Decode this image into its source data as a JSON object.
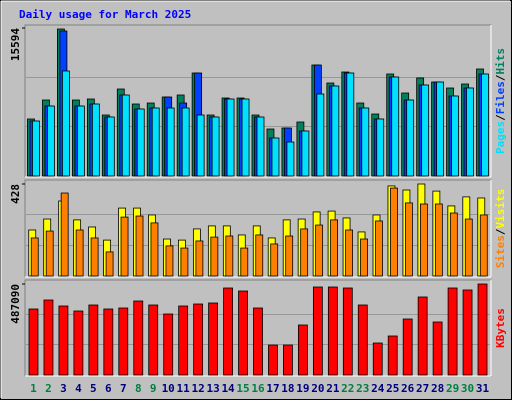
{
  "chart_data": {
    "type": "bar",
    "title": "Daily usage for March 2025",
    "legend_separator": "/",
    "categories": [
      "1",
      "2",
      "3",
      "4",
      "5",
      "6",
      "7",
      "8",
      "9",
      "10",
      "11",
      "12",
      "13",
      "14",
      "15",
      "16",
      "17",
      "18",
      "19",
      "20",
      "21",
      "22",
      "23",
      "24",
      "25",
      "26",
      "27",
      "28",
      "29",
      "30",
      "31"
    ],
    "category_colors": [
      "#008040",
      "#008040",
      "#000080",
      "#000080",
      "#000080",
      "#000080",
      "#000080",
      "#008040",
      "#008040",
      "#000080",
      "#000080",
      "#000080",
      "#000080",
      "#000080",
      "#008040",
      "#008040",
      "#000080",
      "#000080",
      "#000080",
      "#000080",
      "#000080",
      "#008040",
      "#008040",
      "#000080",
      "#000080",
      "#000080",
      "#000080",
      "#000080",
      "#008040",
      "#008040",
      "#000080"
    ],
    "panels": [
      {
        "ylim": [
          0,
          15594
        ],
        "yticks": [
          15594
        ],
        "series": [
          {
            "name": "Hits",
            "color": "#00805c",
            "values": [
              6006,
              8007,
              15488,
              8007,
              8113,
              6427,
              9166,
              7586,
              7691,
              8323,
              8534,
              10852,
              6427,
              8218,
              8218,
              6427,
              4952,
              5057,
              5689,
              11695,
              9798,
              10957,
              7691,
              6532,
              10747,
              8745,
              10325,
              9904,
              9272,
              9693,
              11274
            ]
          },
          {
            "name": "Files",
            "color": "#0040ff",
            "values": [
              5795,
              7375,
              15277,
              7375,
              7586,
              6216,
              8534,
              7059,
              7164,
              8323,
              7691,
              10852,
              6216,
              8113,
              8113,
              6216,
              4004,
              5057,
              4741,
              11695,
              9482,
              10852,
              7164,
              6006,
              10431,
              8007,
              9588,
              9904,
              8429,
              9272,
              10747
            ]
          },
          {
            "name": "Pages",
            "color": "#00e0ff",
            "values": [
              5795,
              7375,
              11063,
              7375,
              7586,
              6216,
              8534,
              7059,
              7164,
              7164,
              7164,
              6427,
              6216,
              8113,
              8113,
              6216,
              4004,
              3582,
              4741,
              8640,
              9482,
              10852,
              7164,
              6006,
              10431,
              8007,
              9588,
              9904,
              8429,
              9272,
              10747
            ]
          }
        ]
      },
      {
        "ylim": [
          0,
          428
        ],
        "yticks": [
          428
        ],
        "series": [
          {
            "name": "Visits",
            "color": "#ffff00",
            "values": [
              214,
              265,
              349,
              261,
              228,
              167,
              316,
              316,
              284,
              172,
              167,
              219,
              233,
              233,
              191,
              233,
              177,
              261,
              265,
              298,
              302,
              270,
              205,
              284,
              419,
              400,
              428,
              395,
              326,
              368,
              363
            ]
          },
          {
            "name": "Sites",
            "color": "#ff8000",
            "values": [
              177,
              209,
              386,
              214,
              177,
              112,
              274,
              279,
              247,
              140,
              130,
              163,
              181,
              186,
              130,
              191,
              149,
              186,
              219,
              237,
              261,
              214,
              172,
              256,
              409,
              340,
              335,
              335,
              293,
              265,
              284
            ]
          }
        ]
      },
      {
        "ylim": [
          0,
          487090
        ],
        "yticks": [
          487090
        ],
        "series": [
          {
            "name": "KBytes",
            "color": "#ff0000",
            "values": [
              353272,
              401445,
              369329,
              342566,
              374682,
              353272,
              358624,
              396092,
              374682,
              326509,
              369329,
              380035,
              385387,
              465676,
              449618,
              358624,
              160578,
              160578,
              267630,
              471029,
              471029,
              465676,
              374682,
              171283,
              208751,
              299746,
              417503,
              283688,
              465676,
              454971,
              487090
            ]
          }
        ]
      }
    ]
  }
}
